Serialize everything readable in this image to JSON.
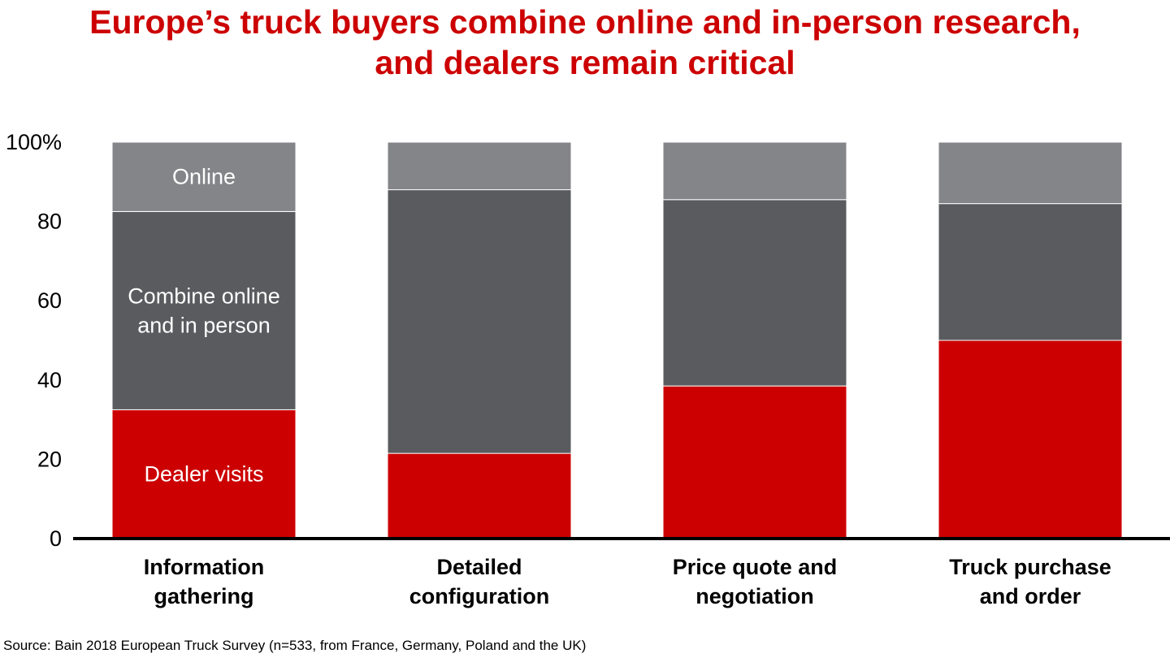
{
  "title_lines": [
    "Europe’s truck buyers combine online and in-person research,",
    "and dealers remain critical"
  ],
  "source": "Source: Bain 2018 European Truck Survey (n=533, from France, Germany, Poland and the UK)",
  "colors": {
    "title": "#cc0000",
    "dealer": "#cc0000",
    "combine": "#5a5b5e",
    "online": "#848589"
  },
  "chart_data": {
    "type": "bar",
    "stacked": true,
    "categories": [
      [
        "Information",
        "gathering"
      ],
      [
        "Detailed",
        "configuration"
      ],
      [
        "Price quote and",
        "negotiation"
      ],
      [
        "Truck purchase",
        "and order"
      ]
    ],
    "series": [
      {
        "name": "Dealer visits",
        "values": [
          32.5,
          21.5,
          38.5,
          50
        ],
        "color": "#cc0000"
      },
      {
        "name": "Combine online and in person",
        "values": [
          50,
          66.5,
          47,
          34.5
        ],
        "color": "#5a5b5e"
      },
      {
        "name": "Online",
        "values": [
          17.5,
          12,
          14.5,
          15.5
        ],
        "color": "#848589"
      }
    ],
    "series_labels": [
      {
        "series": 0,
        "category": 0,
        "lines": [
          "Dealer visits"
        ]
      },
      {
        "series": 1,
        "category": 0,
        "lines": [
          "Combine online",
          "and in person"
        ]
      },
      {
        "series": 2,
        "category": 0,
        "lines": [
          "Online"
        ]
      }
    ],
    "y_ticks": [
      {
        "value": 0,
        "label": "0"
      },
      {
        "value": 20,
        "label": "20"
      },
      {
        "value": 40,
        "label": "40"
      },
      {
        "value": 60,
        "label": "60"
      },
      {
        "value": 80,
        "label": "80"
      },
      {
        "value": 100,
        "label": "100%"
      }
    ],
    "ylim": [
      0,
      100
    ],
    "grid": false,
    "legend": "none"
  }
}
